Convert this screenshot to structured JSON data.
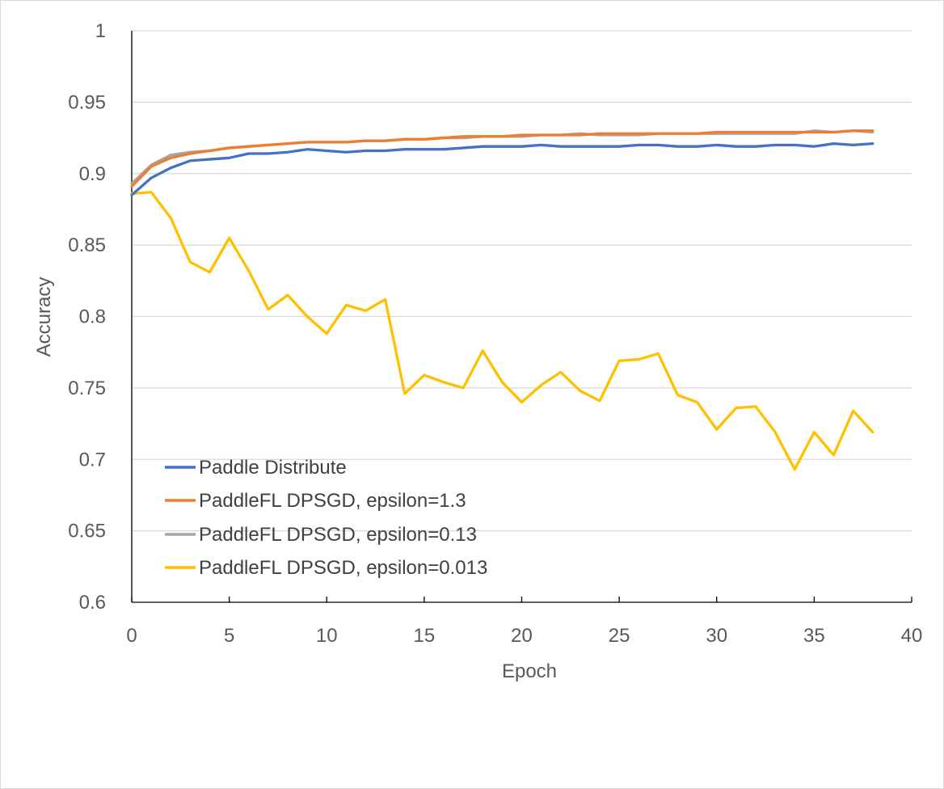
{
  "chart_data": {
    "type": "line",
    "title": "",
    "xlabel": "Epoch",
    "ylabel": "Accuracy",
    "xlim": [
      0,
      40
    ],
    "ylim": [
      0.6,
      1
    ],
    "x_ticks": [
      "0",
      "5",
      "10",
      "15",
      "20",
      "25",
      "30",
      "35",
      "40"
    ],
    "y_ticks": [
      "0.6",
      "0.65",
      "0.7",
      "0.75",
      "0.8",
      "0.85",
      "0.9",
      "0.95",
      "1"
    ],
    "grid": "horizontal",
    "legend_position": "bottom-left",
    "x": [
      0,
      1,
      2,
      3,
      4,
      5,
      6,
      7,
      8,
      9,
      10,
      11,
      12,
      13,
      14,
      15,
      16,
      17,
      18,
      19,
      20,
      21,
      22,
      23,
      24,
      25,
      26,
      27,
      28,
      29,
      30,
      31,
      32,
      33,
      34,
      35,
      36,
      37,
      38
    ],
    "series": [
      {
        "name": "Paddle Distribute",
        "color": "#4472C4",
        "values": [
          0.885,
          0.897,
          0.904,
          0.909,
          0.91,
          0.911,
          0.914,
          0.914,
          0.915,
          0.917,
          0.916,
          0.915,
          0.916,
          0.916,
          0.917,
          0.917,
          0.917,
          0.918,
          0.919,
          0.919,
          0.919,
          0.92,
          0.919,
          0.919,
          0.919,
          0.919,
          0.92,
          0.92,
          0.919,
          0.919,
          0.92,
          0.919,
          0.919,
          0.92,
          0.92,
          0.919,
          0.921,
          0.92,
          0.921
        ]
      },
      {
        "name": "PaddleFL DPSGD, epsilon=1.3",
        "color": "#ED7D31",
        "values": [
          0.891,
          0.905,
          0.911,
          0.914,
          0.916,
          0.918,
          0.919,
          0.92,
          0.921,
          0.922,
          0.922,
          0.922,
          0.923,
          0.923,
          0.924,
          0.924,
          0.925,
          0.926,
          0.926,
          0.926,
          0.927,
          0.927,
          0.927,
          0.927,
          0.928,
          0.928,
          0.928,
          0.928,
          0.928,
          0.928,
          0.929,
          0.929,
          0.929,
          0.929,
          0.929,
          0.929,
          0.929,
          0.93,
          0.93
        ]
      },
      {
        "name": "PaddleFL DPSGD, epsilon=0.13",
        "color": "#A5A5A5",
        "values": [
          0.893,
          0.906,
          0.913,
          0.915,
          0.916,
          0.918,
          0.919,
          0.92,
          0.921,
          0.922,
          0.922,
          0.922,
          0.923,
          0.923,
          0.924,
          0.924,
          0.925,
          0.925,
          0.926,
          0.926,
          0.926,
          0.927,
          0.927,
          0.928,
          0.927,
          0.927,
          0.927,
          0.928,
          0.928,
          0.928,
          0.928,
          0.928,
          0.928,
          0.928,
          0.928,
          0.93,
          0.929,
          0.93,
          0.929
        ]
      },
      {
        "name": "PaddleFL DPSGD, epsilon=0.013",
        "color": "#FFC000",
        "values": [
          0.886,
          0.887,
          0.869,
          0.838,
          0.831,
          0.855,
          0.832,
          0.805,
          0.815,
          0.8,
          0.788,
          0.808,
          0.804,
          0.812,
          0.746,
          0.759,
          0.754,
          0.75,
          0.776,
          0.754,
          0.74,
          0.752,
          0.761,
          0.748,
          0.741,
          0.769,
          0.77,
          0.774,
          0.745,
          0.74,
          0.721,
          0.736,
          0.737,
          0.719,
          0.693,
          0.719,
          0.703,
          0.734,
          0.719
        ]
      }
    ]
  }
}
